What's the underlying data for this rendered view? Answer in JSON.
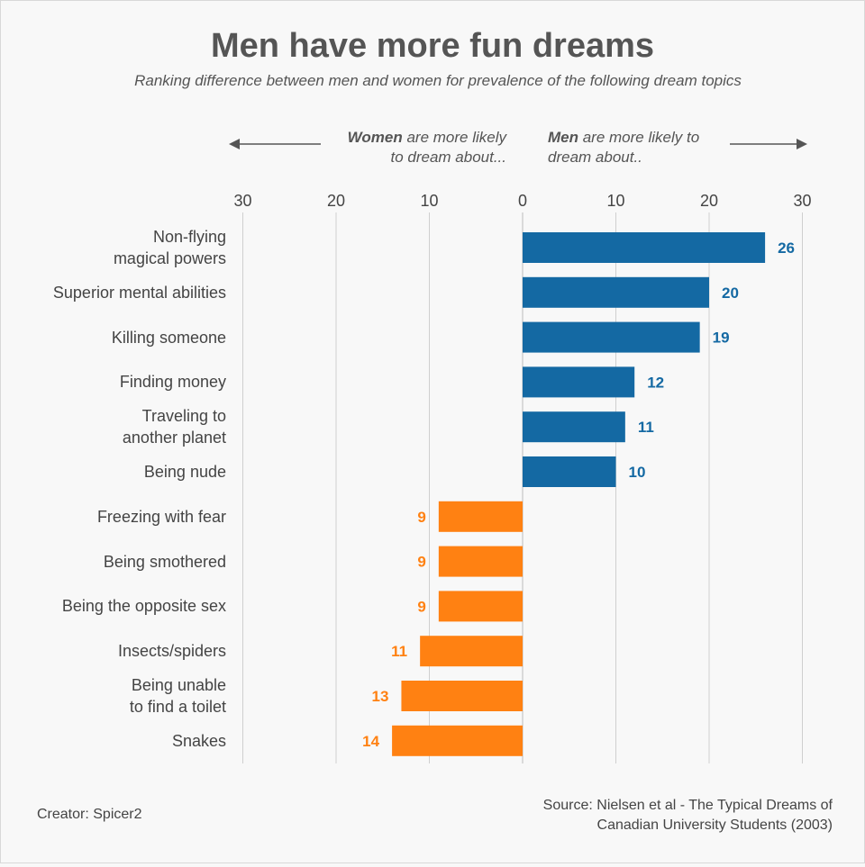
{
  "title": "Men have more fun dreams",
  "subtitle": "Ranking difference between men and women for prevalence of the following dream topics",
  "direction": {
    "women_bold": "Women",
    "women_rest_line1": " are more likely",
    "women_line2": "to dream about...",
    "men_bold": "Men",
    "men_rest_line1": " are more likely to",
    "men_line2": "dream about.."
  },
  "creator": "Creator: Spicer2",
  "source_line1": "Source: Nielsen et al - The Typical Dreams of",
  "source_line2": "Canadian University Students (2003)",
  "colors": {
    "men": "#1469a3",
    "women": "#ff8112",
    "grid": "#cfcfcf",
    "text": "#444444"
  },
  "chart_data": {
    "type": "bar",
    "orientation": "horizontal-diverging",
    "title": "Men have more fun dreams",
    "subtitle": "Ranking difference between men and women for prevalence of the following dream topics",
    "xlim": [
      -30,
      30
    ],
    "ticks": [
      -30,
      -20,
      -10,
      0,
      10,
      20,
      30
    ],
    "tick_labels": [
      "30",
      "20",
      "10",
      "0",
      "10",
      "20",
      "30"
    ],
    "categories": [
      [
        "Non-flying",
        "magical powers"
      ],
      [
        "Superior mental abilities"
      ],
      [
        "Killing someone"
      ],
      [
        "Finding money"
      ],
      [
        "Traveling to",
        "another planet"
      ],
      [
        "Being nude"
      ],
      [
        "Freezing with fear"
      ],
      [
        "Being smothered"
      ],
      [
        "Being the opposite sex"
      ],
      [
        "Insects/spiders"
      ],
      [
        "Being unable",
        "to find a toilet"
      ],
      [
        "Snakes"
      ]
    ],
    "values": [
      26,
      20,
      19,
      12,
      11,
      10,
      -9,
      -9,
      -9,
      -11,
      -13,
      -14
    ],
    "value_labels": [
      "26",
      "20",
      "19",
      "12",
      "11",
      "10",
      "9",
      "9",
      "9",
      "11",
      "13",
      "14"
    ],
    "series": [
      {
        "name": "Men are more likely to dream about",
        "sign": "positive"
      },
      {
        "name": "Women are more likely to dream about",
        "sign": "negative"
      }
    ]
  }
}
